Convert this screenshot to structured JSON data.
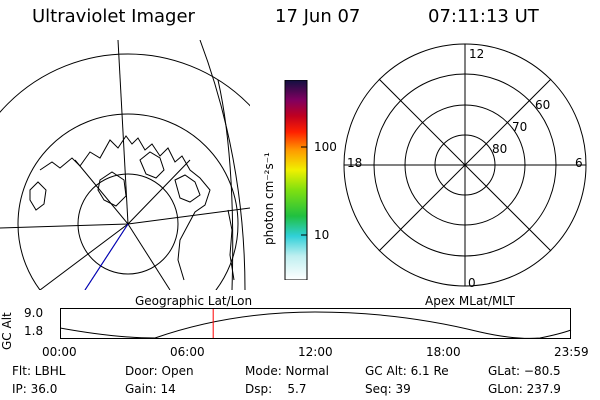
{
  "header": {
    "instrument": "Ultraviolet Imager",
    "date": "17 Jun 07",
    "time": "07:11:13 UT"
  },
  "colorbar": {
    "unit_label": "photon cm⁻²s⁻¹",
    "tick_high": "100",
    "tick_low": "10"
  },
  "left_map": {
    "label": "Geographic Lat/Lon"
  },
  "polar_plot": {
    "label": "Apex MLat/MLT",
    "mlt_top": "12",
    "mlt_left": "18",
    "mlt_right": "6",
    "mlt_bottom": "0",
    "lat_60": "60",
    "lat_70": "70",
    "lat_80": "80"
  },
  "altitude_plot": {
    "ylabel": "GC Alt",
    "y_top": "9.0",
    "y_bottom": "1.8",
    "x_ticks": [
      "00:00",
      "06:00",
      "12:00",
      "18:00",
      "23:59"
    ],
    "current_time_fraction": 0.299
  },
  "footer": {
    "flt": "Flt: LBHL",
    "ip": "IP: 36.0",
    "door": "Door: Open",
    "gain": "Gain: 14",
    "mode": "Mode: Normal",
    "dsp": "Dsp:    5.7",
    "gc_alt": "GC Alt: 6.1 Re",
    "seq": "Seq: 39",
    "glat": "GLat: −80.5",
    "glon": "GLon: 237.9"
  },
  "colors": {
    "marker": "#ff0000",
    "track": "#0000cc"
  }
}
